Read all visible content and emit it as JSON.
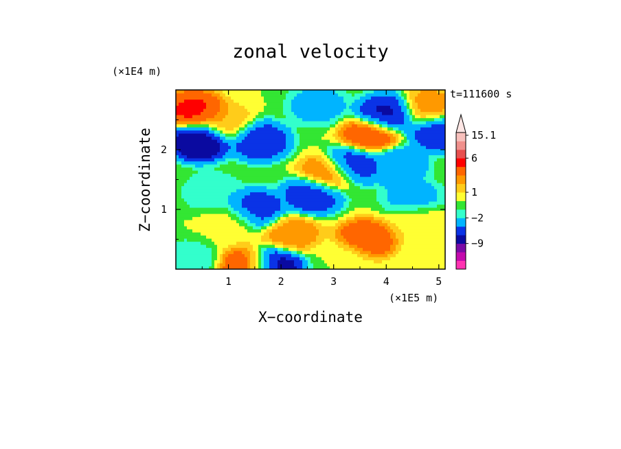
{
  "chart_data": {
    "type": "heatmap",
    "title": "zonal velocity",
    "xlabel": "X−coordinate",
    "ylabel": "Z−coordinate",
    "x_unit": "(×1E5 m)",
    "y_unit": "(×1E4 m)",
    "time_label": "t=111600 s",
    "xlim": [
      0,
      5.12
    ],
    "ylim": [
      0,
      3.0
    ],
    "x_ticks": [
      1,
      2,
      3,
      4,
      5
    ],
    "y_ticks": [
      1,
      2
    ],
    "colorbar": {
      "tick_labels": [
        {
          "label": "15.1",
          "value": 15.1
        },
        {
          "label": "6",
          "value": 6
        },
        {
          "label": "1",
          "value": 1
        },
        {
          "label": "−2",
          "value": -2
        },
        {
          "label": "−9",
          "value": -9
        }
      ],
      "colors_low_to_high": [
        "#ff33b2",
        "#c40aad",
        "#7a0aa6",
        "#0a0aa0",
        "#0a33e6",
        "#00b4ff",
        "#33ffcc",
        "#33e633",
        "#ffff33",
        "#ffcc1a",
        "#ff9900",
        "#ff6600",
        "#ff0000",
        "#e8504f",
        "#f0908c",
        "#f8c0bc"
      ],
      "extend_max": true
    },
    "features": [
      {
        "x": 0.35,
        "z": 2.65,
        "value": 6
      },
      {
        "x": 0.95,
        "z": 2.45,
        "value": 2
      },
      {
        "x": 0.45,
        "z": 2.15,
        "value": -9
      },
      {
        "x": 1.6,
        "z": 2.15,
        "value": -6
      },
      {
        "x": 2.7,
        "z": 2.75,
        "value": -3
      },
      {
        "x": 4.0,
        "z": 2.6,
        "value": -7
      },
      {
        "x": 3.7,
        "z": 2.25,
        "value": 5
      },
      {
        "x": 4.8,
        "z": 2.7,
        "value": 3
      },
      {
        "x": 5.0,
        "z": 2.3,
        "value": -6
      },
      {
        "x": 2.9,
        "z": 1.6,
        "value": 4
      },
      {
        "x": 3.35,
        "z": 1.75,
        "value": -6
      },
      {
        "x": 4.2,
        "z": 1.75,
        "value": -4
      },
      {
        "x": 2.6,
        "z": 1.25,
        "value": -6
      },
      {
        "x": 2.2,
        "z": 0.6,
        "value": 3
      },
      {
        "x": 0.7,
        "z": 1.3,
        "value": -2
      },
      {
        "x": 1.1,
        "z": 0.8,
        "value": 1
      },
      {
        "x": 1.5,
        "z": 1.0,
        "value": -6
      },
      {
        "x": 1.4,
        "z": 0.05,
        "value": 5
      },
      {
        "x": 1.85,
        "z": 0.05,
        "value": -8
      },
      {
        "x": 3.6,
        "z": 0.5,
        "value": 5
      },
      {
        "x": 4.6,
        "z": 0.8,
        "value": 1
      },
      {
        "x": 3.2,
        "z": 0.2,
        "value": 0
      },
      {
        "x": 4.5,
        "z": 1.2,
        "value": -3
      },
      {
        "x": 0.2,
        "z": 0.15,
        "value": -2
      }
    ]
  }
}
